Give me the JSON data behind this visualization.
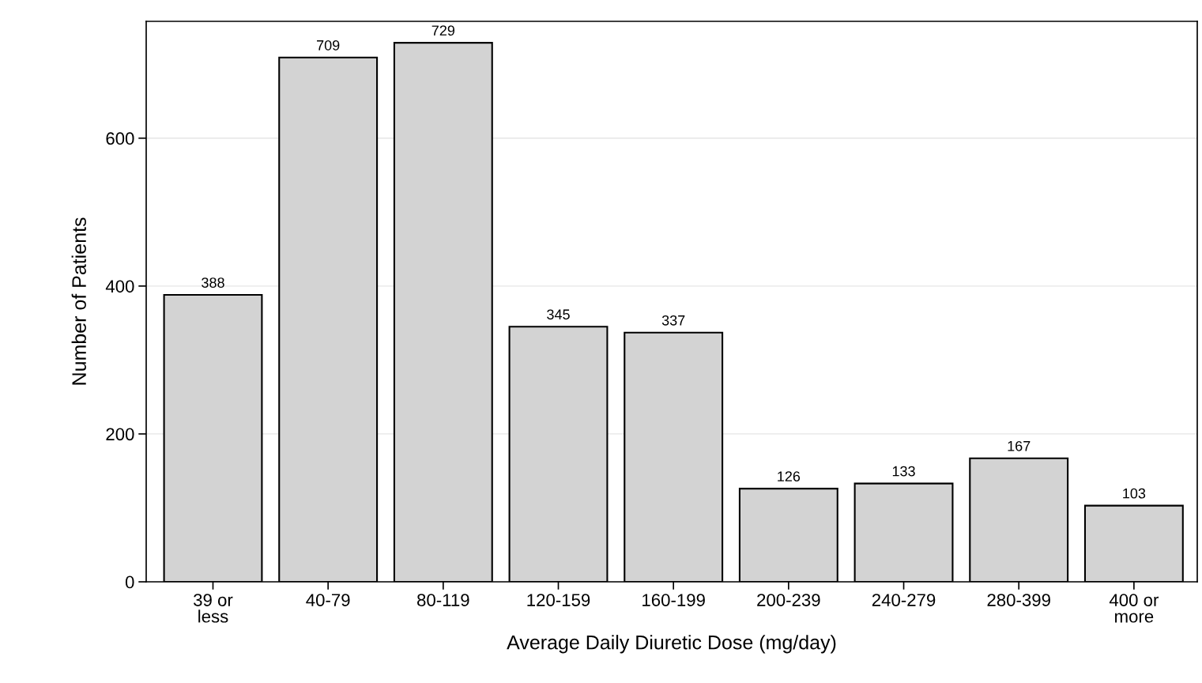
{
  "chart_data": {
    "type": "bar",
    "xlabel": "Average Daily Diuretic Dose (mg/day)",
    "ylabel": "Number of Patients",
    "categories": [
      "39 or\nless",
      "40-79",
      "80-119",
      "120-159",
      "160-199",
      "200-239",
      "240-279",
      "280-399",
      "400 or\nmore"
    ],
    "values": [
      388,
      709,
      729,
      345,
      337,
      126,
      133,
      167,
      103
    ],
    "color": "#d3d3d3",
    "ylim": [
      0,
      758
    ],
    "yticks": [
      0,
      200,
      400,
      600
    ],
    "grid": "y",
    "data_labels": true
  }
}
